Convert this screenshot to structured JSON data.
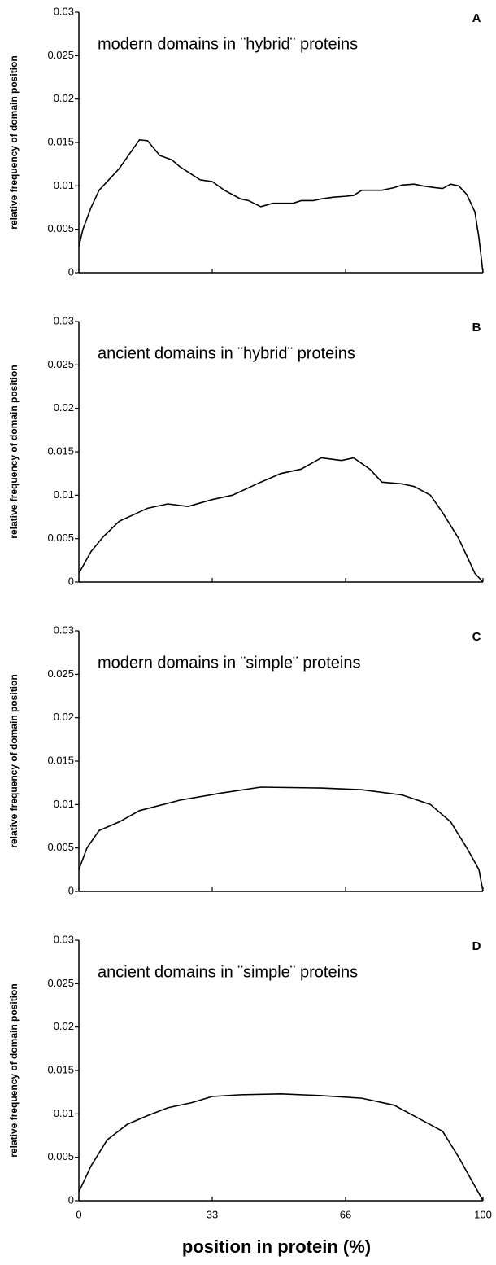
{
  "chart_data": [
    {
      "type": "line",
      "panel_label": "A",
      "title": "modern domains in ¨hybrid¨ proteins",
      "ylabel": "relative frequency of domain position",
      "x": [
        0,
        1,
        3,
        5,
        8,
        10,
        13,
        15,
        17,
        20,
        23,
        25,
        28,
        30,
        33,
        36,
        38,
        40,
        42,
        45,
        48,
        50,
        53,
        55,
        58,
        60,
        63,
        66,
        68,
        70,
        73,
        75,
        78,
        80,
        83,
        85,
        88,
        90,
        92,
        94,
        96,
        98,
        99,
        100
      ],
      "series": [
        {
          "color": "#000000",
          "values": [
            0.003,
            0.005,
            0.0075,
            0.0095,
            0.011,
            0.012,
            0.014,
            0.0153,
            0.0152,
            0.0135,
            0.013,
            0.0122,
            0.0113,
            0.0107,
            0.0105,
            0.0095,
            0.009,
            0.0085,
            0.0083,
            0.0076,
            0.008,
            0.008,
            0.008,
            0.0083,
            0.0083,
            0.0085,
            0.0087,
            0.0088,
            0.0089,
            0.0095,
            0.0095,
            0.0095,
            0.0098,
            0.0101,
            0.0102,
            0.01,
            0.0098,
            0.0097,
            0.0102,
            0.01,
            0.009,
            0.007,
            0.004,
            0
          ]
        }
      ],
      "xlim": [
        0,
        100
      ],
      "xticks": [
        0,
        33,
        66,
        100
      ],
      "xtick_labels": false,
      "ylim": [
        0,
        0.03
      ],
      "yticks": [
        0,
        0.005,
        0.01,
        0.015,
        0.02,
        0.025,
        0.03
      ]
    },
    {
      "type": "line",
      "panel_label": "B",
      "title": "ancient domains in ¨hybrid¨ proteins",
      "ylabel": "relative frequency of domain position",
      "x": [
        0,
        3,
        6,
        10,
        17,
        22,
        27,
        33,
        38,
        45,
        50,
        55,
        60,
        65,
        68,
        72,
        75,
        80,
        83,
        87,
        90,
        94,
        96,
        98,
        100
      ],
      "series": [
        {
          "color": "#000000",
          "values": [
            0.001,
            0.0035,
            0.0052,
            0.007,
            0.0085,
            0.009,
            0.0087,
            0.0095,
            0.01,
            0.0115,
            0.0125,
            0.013,
            0.0143,
            0.014,
            0.0143,
            0.013,
            0.0115,
            0.0113,
            0.011,
            0.01,
            0.008,
            0.005,
            0.003,
            0.001,
            0
          ]
        }
      ],
      "xlim": [
        0,
        100
      ],
      "xticks": [
        0,
        33,
        66,
        100
      ],
      "xtick_labels": false,
      "ylim": [
        0,
        0.03
      ],
      "yticks": [
        0,
        0.005,
        0.01,
        0.015,
        0.02,
        0.025,
        0.03
      ]
    },
    {
      "type": "line",
      "panel_label": "C",
      "title": "modern domains in ¨simple¨ proteins",
      "ylabel": "relative frequency of domain position",
      "x": [
        0,
        2,
        5,
        10,
        15,
        25,
        35,
        45,
        60,
        70,
        80,
        87,
        92,
        96,
        99,
        100
      ],
      "series": [
        {
          "color": "#000000",
          "values": [
            0.0025,
            0.005,
            0.007,
            0.008,
            0.0093,
            0.0105,
            0.0113,
            0.012,
            0.0119,
            0.0117,
            0.0111,
            0.01,
            0.008,
            0.005,
            0.0025,
            0
          ]
        }
      ],
      "xlim": [
        0,
        100
      ],
      "xticks": [
        0,
        33,
        66,
        100
      ],
      "xtick_labels": false,
      "ylim": [
        0,
        0.03
      ],
      "yticks": [
        0,
        0.005,
        0.01,
        0.015,
        0.02,
        0.025,
        0.03
      ]
    },
    {
      "type": "line",
      "panel_label": "D",
      "title": "ancient domains in ¨simple¨ proteins",
      "ylabel": "relative frequency of domain position",
      "xlabel": "position in protein (%)",
      "x": [
        0,
        3,
        7,
        12,
        17,
        22,
        28,
        33,
        40,
        50,
        60,
        70,
        78,
        84,
        90,
        94,
        97,
        100
      ],
      "series": [
        {
          "color": "#000000",
          "values": [
            0.001,
            0.004,
            0.007,
            0.0088,
            0.0098,
            0.0107,
            0.0113,
            0.012,
            0.0122,
            0.0123,
            0.0121,
            0.0118,
            0.011,
            0.0095,
            0.008,
            0.005,
            0.0025,
            0
          ]
        }
      ],
      "xlim": [
        0,
        100
      ],
      "xticks": [
        0,
        33,
        66,
        100
      ],
      "xtick_labels": true,
      "ylim": [
        0,
        0.03
      ],
      "yticks": [
        0,
        0.005,
        0.01,
        0.015,
        0.02,
        0.025,
        0.03
      ]
    }
  ]
}
